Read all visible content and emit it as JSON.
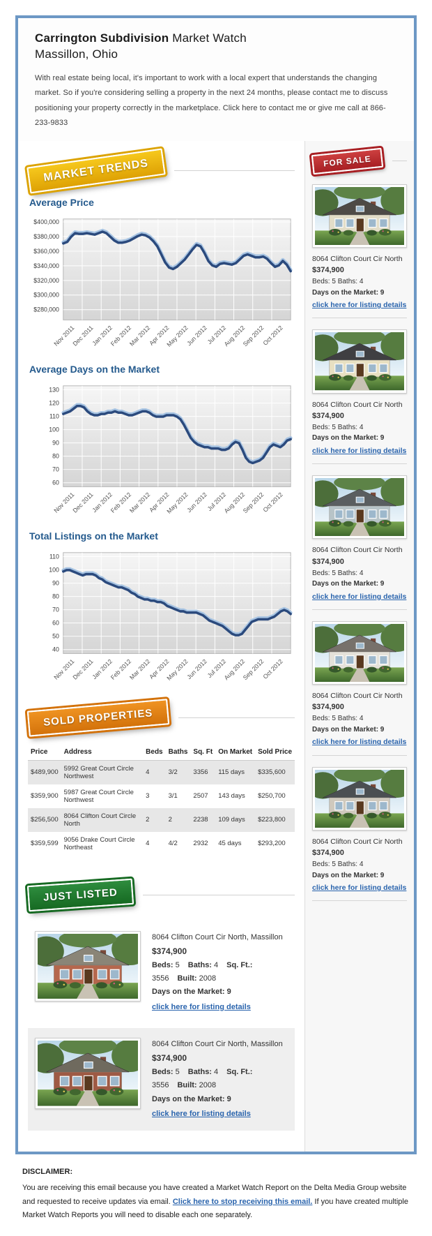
{
  "header": {
    "title_bold": "Carrington Subdivision",
    "title_rest": " Market Watch",
    "subtitle": "Massillon, Ohio",
    "intro": "With real estate being local, it's important to work with a local expert that understands the changing market. So if you're considering selling a property in the next 24 months, please contact me to discuss positioning your property correctly in the marketplace. Click here to contact me or give me call at 866-233-9833"
  },
  "badges": {
    "market_trends": "MARKET TRENDS",
    "for_sale": "FOR SALE",
    "sold_properties": "SOLD PROPERTIES",
    "just_listed": "JUST LISTED"
  },
  "colors": {
    "container_border": "#6d98c5",
    "heading_blue": "#245a8d",
    "link_blue": "#2a64ad",
    "chart_line": "#2b4a7d",
    "badge_yellow": "#e3aa0a",
    "badge_red": "#b02226",
    "badge_orange": "#dd7e12",
    "badge_green": "#1e7a2e"
  },
  "chart_data": [
    {
      "type": "line",
      "title": "Average Price",
      "categories": [
        "Nov 2011",
        "Dec 2011",
        "Jan 2012",
        "Feb 2012",
        "Mar 2012",
        "Apr 2012",
        "May 2012",
        "Jun 2012",
        "Jul 2012",
        "Aug 2012",
        "Sep 2012",
        "Oct 2012"
      ],
      "values": [
        371000,
        373000,
        380000,
        385000,
        384000,
        384000,
        385000,
        384000,
        383000,
        385000,
        387000,
        385000,
        380000,
        375000,
        372000,
        372000,
        373000,
        375000,
        378000,
        381000,
        383000,
        382000,
        379000,
        374000,
        367000,
        356000,
        345000,
        338000,
        336000,
        339000,
        344000,
        349000,
        356000,
        363000,
        369000,
        367000,
        358000,
        347000,
        341000,
        339000,
        343000,
        344000,
        343000,
        342000,
        344000,
        349000,
        354000,
        356000,
        354000,
        352000,
        352000,
        353000,
        350000,
        344000,
        339000,
        341000,
        347000,
        342000,
        333000
      ],
      "ylim": [
        266000,
        404000
      ],
      "ytick_values": [
        400000,
        380000,
        360000,
        340000,
        320000,
        300000,
        280000
      ],
      "ytick_labels": [
        "$400,000",
        "$380,000",
        "$360,000",
        "$340,000",
        "$320,000",
        "$300,000",
        "$280,000"
      ],
      "xlabel": "",
      "ylabel": "",
      "grid": true,
      "legend": "none"
    },
    {
      "type": "line",
      "title": "Average Days on the Market",
      "categories": [
        "Nov 2011",
        "Dec 2011",
        "Jan 2012",
        "Feb 2012",
        "Mar 2012",
        "Apr 2012",
        "May 2012",
        "Jun 2012",
        "Jul 2012",
        "Aug 2012",
        "Sep 2012",
        "Oct 2012"
      ],
      "values": [
        112,
        113,
        114,
        116,
        118,
        118,
        117,
        114,
        112,
        111,
        111,
        112,
        112,
        113,
        113,
        114,
        113,
        113,
        112,
        111,
        111,
        112,
        113,
        114,
        114,
        113,
        111,
        110,
        110,
        110,
        111,
        111,
        111,
        110,
        108,
        104,
        99,
        94,
        91,
        89,
        88,
        87,
        87,
        86,
        86,
        86,
        85,
        85,
        86,
        89,
        91,
        90,
        85,
        79,
        76,
        75,
        76,
        77,
        79,
        83,
        87,
        89,
        88,
        87,
        89,
        92,
        93
      ],
      "ylim": [
        57,
        133
      ],
      "ytick_values": [
        130,
        120,
        110,
        100,
        90,
        80,
        70,
        60
      ],
      "ytick_labels": [
        "130",
        "120",
        "110",
        "100",
        "90",
        "80",
        "70",
        "60"
      ],
      "xlabel": "",
      "ylabel": "",
      "grid": true,
      "legend": "none"
    },
    {
      "type": "line",
      "title": "Total Listings on the Market",
      "categories": [
        "Nov 2011",
        "Dec 2011",
        "Jan 2012",
        "Feb 2012",
        "Mar 2012",
        "Apr 2012",
        "May 2012",
        "Jun 2012",
        "Jul 2012",
        "Aug 2012",
        "Sep 2012",
        "Oct 2012"
      ],
      "values": [
        99,
        100,
        100,
        99,
        98,
        97,
        96,
        97,
        97,
        97,
        96,
        94,
        93,
        91,
        90,
        89,
        88,
        87,
        87,
        86,
        85,
        83,
        82,
        80,
        79,
        78,
        78,
        77,
        77,
        76,
        76,
        75,
        73,
        72,
        71,
        70,
        69,
        69,
        68,
        68,
        68,
        68,
        67,
        66,
        64,
        62,
        61,
        60,
        59,
        58,
        56,
        54,
        52,
        51,
        51,
        52,
        55,
        58,
        61,
        62,
        63,
        63,
        63,
        63,
        64,
        65,
        67,
        69,
        70,
        69,
        67
      ],
      "ylim": [
        37,
        113
      ],
      "ytick_values": [
        110,
        100,
        90,
        80,
        70,
        60,
        50,
        40
      ],
      "ytick_labels": [
        "110",
        "100",
        "90",
        "80",
        "70",
        "60",
        "50",
        "40"
      ],
      "xlabel": "",
      "ylabel": "",
      "grid": true,
      "legend": "none"
    }
  ],
  "sold_table": {
    "headers": [
      "Price",
      "Address",
      "Beds",
      "Baths",
      "Sq. Ft",
      "On Market",
      "Sold Price"
    ],
    "rows": [
      [
        "$489,900",
        "5992 Great Court Circle Northwest",
        "4",
        "3/2",
        "3356",
        "115 days",
        "$335,600"
      ],
      [
        "$359,900",
        "5987 Great Court Circle Northwest",
        "3",
        "3/1",
        "2507",
        "143 days",
        "$250,700"
      ],
      [
        "$256,500",
        "8064 Clifton Court Circle North",
        "2",
        "2",
        "2238",
        "109 days",
        "$223,800"
      ],
      [
        "$359,599",
        "9056 Drake Court Circle Northeast",
        "4",
        "4/2",
        "2932",
        "45 days",
        "$293,200"
      ]
    ]
  },
  "sidebar": {
    "listings": [
      {
        "address": "8064 Clifton Court Cir North",
        "price": "$374,900",
        "beds_baths": "Beds: 5 Baths: 4",
        "days": "Days on the Market: 9",
        "link": "click here for listing details",
        "photo": {
          "wall": "#e3ddc8",
          "roof": "#4e4a46"
        }
      },
      {
        "address": "8064 Clifton Court Cir North",
        "price": "$374,900",
        "beds_baths": "Beds: 5 Baths: 4",
        "days": "Days on the Market: 9",
        "link": "click here for listing details",
        "photo": {
          "wall": "#e8e0c2",
          "roof": "#3f3f42"
        }
      },
      {
        "address": "8064 Clifton Court Cir North",
        "price": "$374,900",
        "beds_baths": "Beds: 5 Baths: 4",
        "days": "Days on the Market: 9",
        "link": "click here for listing details",
        "photo": {
          "wall": "#b8c4c8",
          "roof": "#5a5e60"
        }
      },
      {
        "address": "8064 Clifton Court Cir North",
        "price": "$374,900",
        "beds_baths": "Beds: 5 Baths: 4",
        "days": "Days on the Market: 9",
        "link": "click here for listing details",
        "photo": {
          "wall": "#e5e2da",
          "roof": "#77716b"
        }
      },
      {
        "address": "8064 Clifton Court Cir North",
        "price": "$374,900",
        "beds_baths": "Beds: 5 Baths: 4",
        "days": "Days on the Market: 9",
        "link": "click here for listing details",
        "photo": {
          "wall": "#cfc9bd",
          "roof": "#4b4f52"
        }
      }
    ]
  },
  "just_listed": {
    "items": [
      {
        "address": "8064 Clifton Court Cir North, Massillon",
        "price": "$374,900",
        "specs": [
          {
            "label": "Beds:",
            "value": "5"
          },
          {
            "label": "Baths:",
            "value": "4"
          },
          {
            "label": "Sq. Ft.:",
            "value": "3556"
          },
          {
            "label": "Built:",
            "value": "2008"
          }
        ],
        "days": "Days on the Market: 9",
        "link": "click here for listing details",
        "photo": {
          "wall": "#b5674d",
          "roof": "#8a8577"
        }
      },
      {
        "address": "8064 Clifton Court Cir North, Massillon",
        "price": "$374,900",
        "specs": [
          {
            "label": "Beds:",
            "value": "5"
          },
          {
            "label": "Baths:",
            "value": "4"
          },
          {
            "label": "Sq. Ft.:",
            "value": "3556"
          },
          {
            "label": "Built:",
            "value": "2008"
          }
        ],
        "days": "Days on the Market: 9",
        "link": "click here for listing details",
        "photo": {
          "wall": "#9e5a44",
          "roof": "#6f6a5e"
        }
      }
    ]
  },
  "disclaimer": {
    "label": "DISCLAIMER:",
    "text_before": "You are receiving this email because you have created a Market Watch Report on the Delta Media Group website and requested to receive updates via email. ",
    "link": "Click here to stop receiving this email.",
    "text_after": " If you have created multiple Market Watch Reports you will need to disable each one separately."
  }
}
